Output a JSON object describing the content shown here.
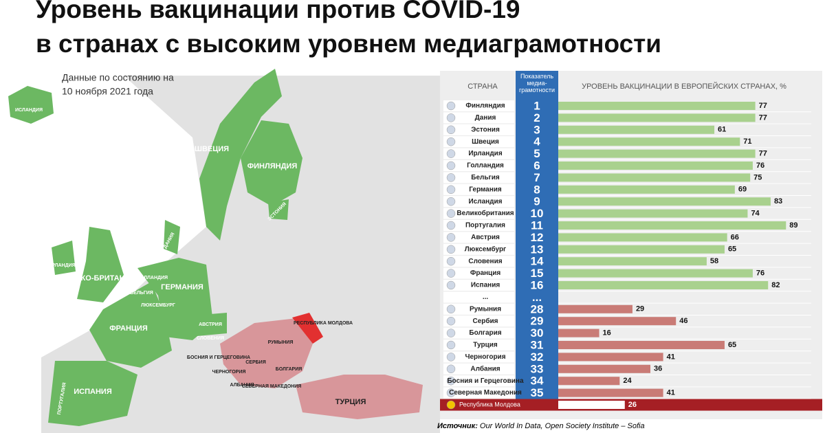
{
  "chart_data": {
    "type": "bar",
    "orientation": "horizontal",
    "title": [
      "Уровень вакцинации против COVID-19",
      "в странах с высоким уровнем медиаграмотности"
    ],
    "subtitle": [
      "Данные по состоянию на",
      "10 ноября 2021 года"
    ],
    "column_headers": [
      "СТРАНА",
      "Показатель медиа-грамотности",
      "УРОВЕНЬ ВАКЦИНАЦИИ В ЕВРОПЕЙСКИХ СТРАНАХ, %"
    ],
    "categories": [
      "Финляндия",
      "Дания",
      "Эстония",
      "Швеция",
      "Ирландия",
      "Голландия",
      "Бельгия",
      "Германия",
      "Исландия",
      "Великобритания",
      "Португалия",
      "Австрия",
      "Люксембург",
      "Словения",
      "Франция",
      "Испания",
      "...",
      "Румыния",
      "Сербия",
      "Болгария",
      "Турция",
      "Черногория",
      "Албания",
      "Босния и Герцеговина",
      "Северная Македония",
      "Республика Молдова"
    ],
    "ranks": [
      1,
      2,
      3,
      4,
      5,
      6,
      7,
      8,
      9,
      10,
      11,
      12,
      13,
      14,
      15,
      16,
      "...",
      28,
      29,
      30,
      31,
      32,
      33,
      34,
      35,
      null
    ],
    "values": [
      77,
      77,
      61,
      71,
      77,
      76,
      75,
      69,
      83,
      74,
      89,
      66,
      65,
      58,
      76,
      82,
      null,
      29,
      46,
      16,
      65,
      41,
      36,
      24,
      41,
      26
    ],
    "colors": [
      "#a9d18e",
      "#a9d18e",
      "#a9d18e",
      "#a9d18e",
      "#a9d18e",
      "#a9d18e",
      "#a9d18e",
      "#a9d18e",
      "#a9d18e",
      "#a9d18e",
      "#a9d18e",
      "#a9d18e",
      "#a9d18e",
      "#a9d18e",
      "#a9d18e",
      "#a9d18e",
      null,
      "#c97b76",
      "#c97b76",
      "#c97b76",
      "#c97b76",
      "#c97b76",
      "#c97b76",
      "#c97b76",
      "#c97b76",
      "#ffffff"
    ],
    "highlight_color": "#a51f24",
    "rank_color": "#2f6db5",
    "xlim": [
      0,
      90
    ]
  },
  "map": {
    "labels": [
      "ИСЛАНДИЯ",
      "ШВЕЦИЯ",
      "ФИНЛЯНДИЯ",
      "ЭСТОНИЯ",
      "ДАНИЯ",
      "ИРЛАНДИЯ",
      "ВЕЛИКО-БРИТАНИЯ",
      "ГОЛЛАНДИЯ",
      "БЕЛЬГИЯ",
      "ЛЮКСЕМБУРГ",
      "ГЕРМАНИЯ",
      "ФРАНЦИЯ",
      "АВСТРИЯ",
      "СЛОВЕНИЯ",
      "ИСПАНИЯ",
      "ПОРТУГАЛИЯ",
      "РУМЫНИЯ",
      "РЕСПУБЛИКА МОЛДОВА",
      "БОСНИЯ И ГЕРЦЕГОВИНА",
      "СЕРБИЯ",
      "ЧЕРНОГОРИЯ",
      "БОЛГАРИЯ",
      "АЛБАНИЯ",
      "СЕВЕРНАЯ МАКЕДОНИЯ",
      "ТУРЦИЯ"
    ]
  },
  "source": {
    "label": "Источник:",
    "text": "Our World In Data, Open Society Institute – Sofia"
  }
}
